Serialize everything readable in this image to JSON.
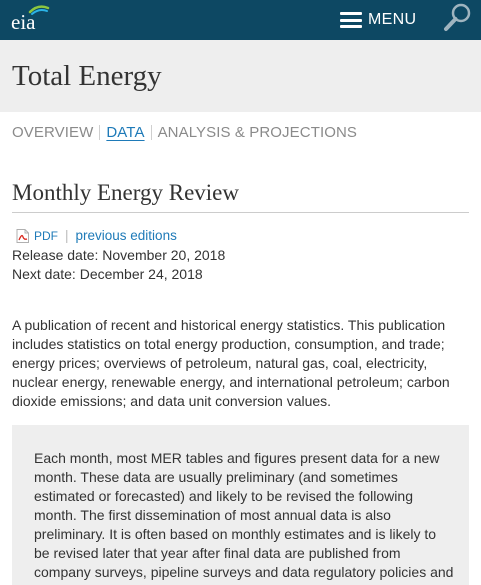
{
  "header": {
    "logo_text": "eia",
    "menu_label": "MENU",
    "search_icon": "search-icon",
    "background_color": "#0d4863"
  },
  "page": {
    "title": "Total Energy"
  },
  "tabs": [
    {
      "label": "OVERVIEW",
      "active": false
    },
    {
      "label": "DATA",
      "active": true
    },
    {
      "label": "ANALYSIS & PROJECTIONS",
      "active": false
    }
  ],
  "section": {
    "title": "Monthly Energy Review",
    "pdf_label": "PDF",
    "previous_editions_label": "previous editions",
    "release_date": "Release date: November 20, 2018",
    "next_date": "Next date: December 24, 2018",
    "description": "A publication of recent and historical energy statistics. This publication includes statistics on total energy production, consumption, and trade; energy prices; overviews of petroleum, natural gas, coal, electricity, nuclear energy, renewable energy, and international petroleum; carbon dioxide emissions; and data unit conversion values."
  },
  "notice": {
    "text": "Each month, most MER tables and figures present data for a new month. These data are usually preliminary (and sometimes estimated or forecasted) and likely to be revised the following month. The first dissemination of most annual data is also preliminary. It is often based on monthly estimates and is likely to be revised later that year after final data are published from company surveys, pipeline surveys and data regulatory policies and publication"
  },
  "colors": {
    "link": "#1e7ab8",
    "title_band": "#eeeeee",
    "text": "#333333"
  }
}
